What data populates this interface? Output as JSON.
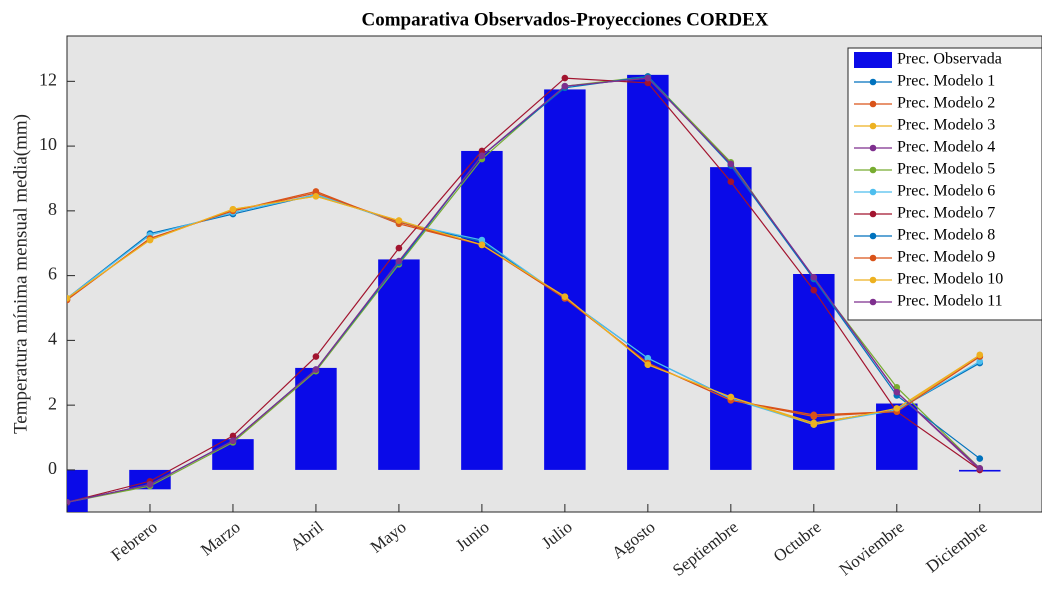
{
  "chart_data": {
    "type": "combo",
    "title": "Comparativa Observados-Proyecciones CORDEX",
    "y_label": "Temperatura mínima mensual media(mm)",
    "categories": [
      null,
      "Febrero",
      "Marzo",
      "Abril",
      "Mayo",
      "Junio",
      "Julio",
      "Agosto",
      "Septiembre",
      "Octubre",
      "Noviembre",
      "Diciembre"
    ],
    "xlim": [
      1,
      12.75
    ],
    "ylim": [
      -1.3,
      13.4
    ],
    "yticks": [
      0,
      2,
      4,
      6,
      8,
      10,
      12
    ],
    "grid": false,
    "legend": "northeast",
    "series": [
      {
        "name": "Prec. Observada",
        "type": "bar",
        "color": "#0a0ae8",
        "values": [
          -1.3,
          -0.6,
          0.95,
          3.15,
          6.5,
          9.85,
          11.75,
          12.2,
          9.35,
          6.05,
          2.05,
          -0.05
        ]
      },
      {
        "name": "Prec. Modelo 1",
        "type": "line",
        "color": "#0072bd",
        "values": [
          5.3,
          7.3,
          7.9,
          8.5,
          7.65,
          7.05,
          5.3,
          3.45,
          2.2,
          1.45,
          1.85,
          3.3
        ]
      },
      {
        "name": "Prec. Modelo 2",
        "type": "line",
        "color": "#d95319",
        "values": [
          5.25,
          7.15,
          8.0,
          8.6,
          7.6,
          6.95,
          5.3,
          3.3,
          2.15,
          1.65,
          1.8,
          3.5
        ]
      },
      {
        "name": "Prec. Modelo 3",
        "type": "line",
        "color": "#edb120",
        "values": [
          5.3,
          7.1,
          8.05,
          8.45,
          7.7,
          6.95,
          5.35,
          3.25,
          2.25,
          1.45,
          1.85,
          3.55
        ]
      },
      {
        "name": "Prec. Modelo 4",
        "type": "line",
        "color": "#7e2f8e",
        "values": [
          -1.0,
          -0.45,
          0.9,
          3.1,
          6.4,
          9.7,
          11.85,
          12.1,
          9.45,
          5.95,
          2.4,
          0.0
        ]
      },
      {
        "name": "Prec. Modelo 5",
        "type": "line",
        "color": "#77ac30",
        "values": [
          -1.0,
          -0.5,
          0.85,
          3.05,
          6.35,
          9.6,
          11.85,
          12.15,
          9.5,
          5.9,
          2.55,
          0.05
        ]
      },
      {
        "name": "Prec. Modelo 6",
        "type": "line",
        "color": "#4dbeee",
        "values": [
          5.3,
          7.25,
          7.95,
          8.5,
          7.65,
          7.1,
          5.3,
          3.45,
          2.2,
          1.4,
          1.85,
          3.35
        ]
      },
      {
        "name": "Prec. Modelo 7",
        "type": "line",
        "color": "#a2142f",
        "values": [
          -1.0,
          -0.35,
          1.05,
          3.5,
          6.85,
          9.85,
          12.1,
          11.95,
          8.9,
          5.55,
          1.8,
          0.0
        ]
      },
      {
        "name": "Prec. Modelo 8",
        "type": "line",
        "color": "#0072bd",
        "values": [
          -1.0,
          -0.45,
          0.9,
          3.1,
          6.4,
          9.7,
          11.8,
          12.15,
          9.4,
          5.9,
          2.3,
          0.35
        ]
      },
      {
        "name": "Prec. Modelo 9",
        "type": "line",
        "color": "#d95319",
        "values": [
          5.25,
          7.15,
          8.0,
          8.55,
          7.65,
          6.95,
          5.3,
          3.3,
          2.15,
          1.7,
          1.8,
          3.5
        ]
      },
      {
        "name": "Prec. Modelo 10",
        "type": "line",
        "color": "#edb120",
        "values": [
          5.3,
          7.1,
          8.05,
          8.45,
          7.7,
          6.95,
          5.35,
          3.25,
          2.25,
          1.4,
          1.9,
          3.55
        ]
      },
      {
        "name": "Prec. Modelo 11",
        "type": "line",
        "color": "#7e2f8e",
        "values": [
          -1.0,
          -0.45,
          0.9,
          3.1,
          6.45,
          9.7,
          11.85,
          12.1,
          9.45,
          5.95,
          2.4,
          0.05
        ]
      }
    ]
  }
}
